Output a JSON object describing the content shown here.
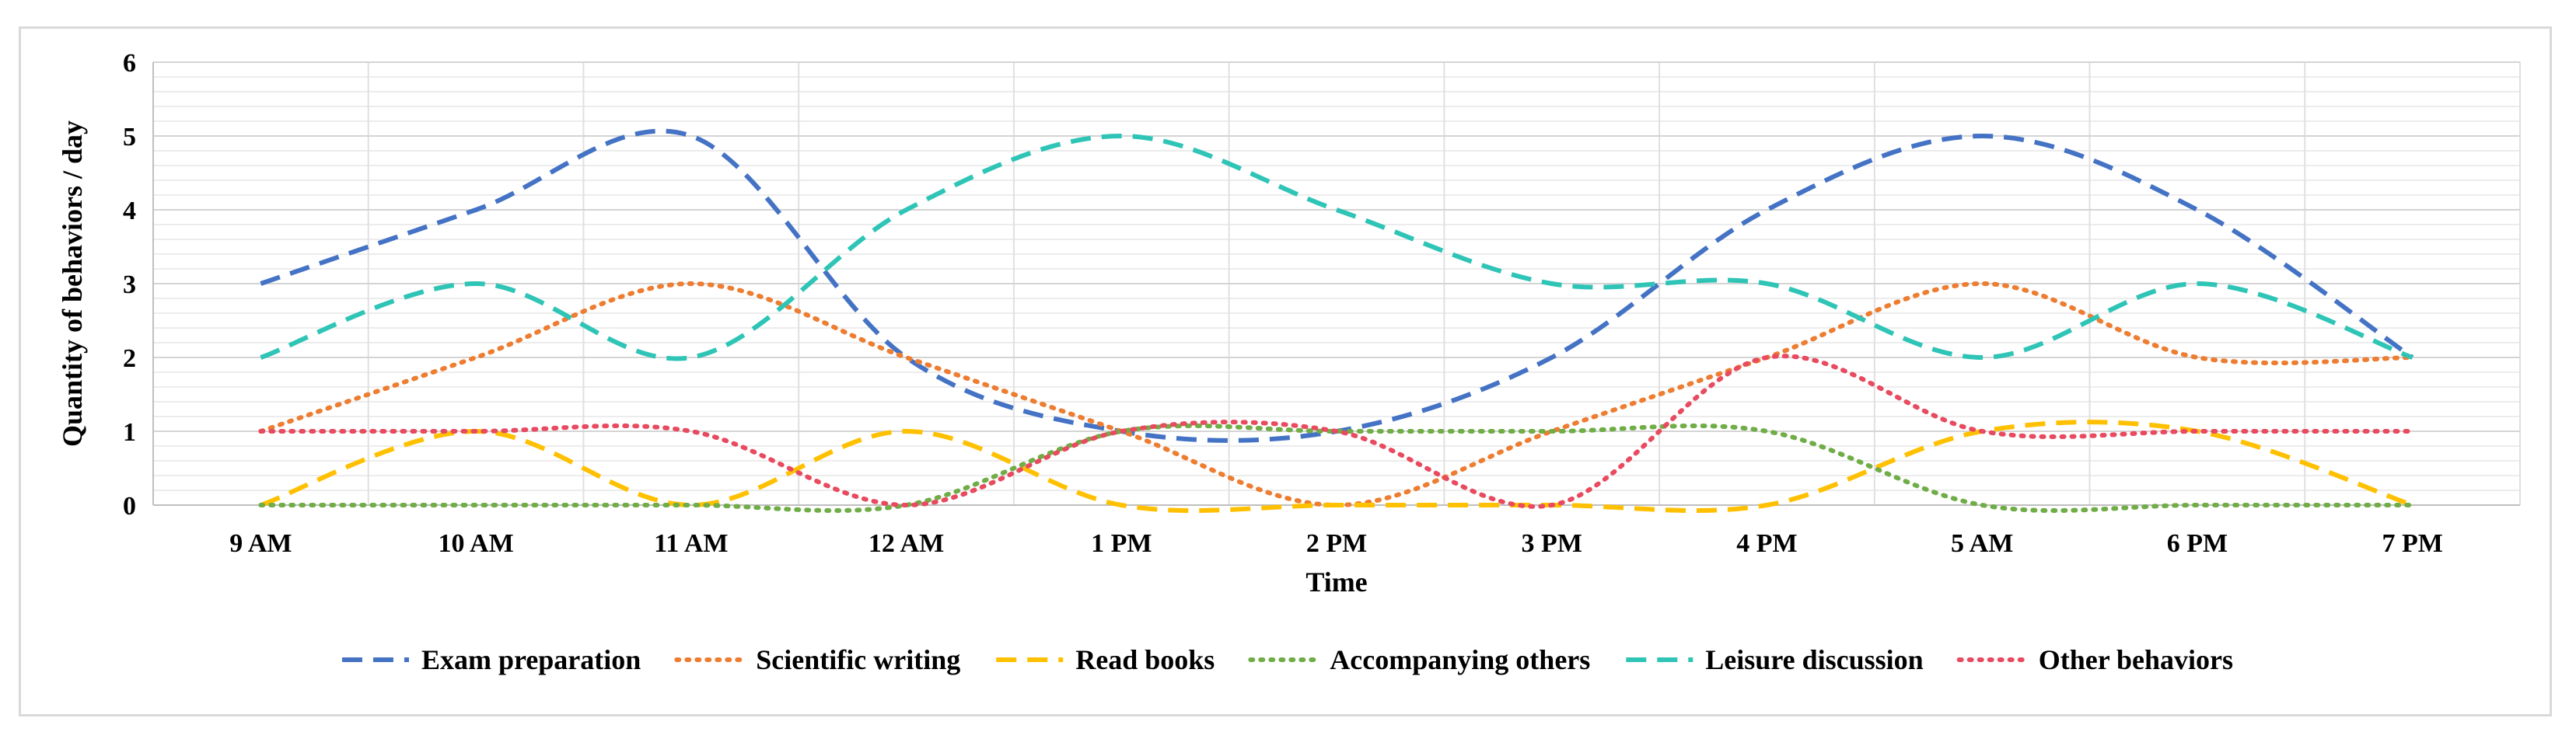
{
  "chart_data": {
    "type": "line",
    "title": "",
    "xlabel": "Time",
    "ylabel": "Quantity of behaviors / day",
    "categories": [
      "9 AM",
      "10 AM",
      "11 AM",
      "12 AM",
      "1 PM",
      "2 PM",
      "3 PM",
      "4 PM",
      "5 AM",
      "6 PM",
      "7 PM"
    ],
    "ylim": [
      0,
      6
    ],
    "yticks": [
      0,
      1,
      2,
      3,
      4,
      5,
      6
    ],
    "grid": true,
    "legend": "bottom",
    "series": [
      {
        "name": "Exam preparation",
        "color": "#4472C4",
        "dash": "dashed",
        "values": [
          3,
          4,
          5,
          2,
          1,
          1,
          2,
          4,
          5,
          4,
          2
        ]
      },
      {
        "name": "Scientific writing",
        "color": "#ED7D31",
        "dash": "dotted",
        "values": [
          1,
          2,
          3,
          2,
          1,
          0,
          1,
          2,
          3,
          2,
          2
        ]
      },
      {
        "name": "Read books",
        "color": "#FFC000",
        "dash": "dashed",
        "values": [
          0,
          1,
          0,
          1,
          0,
          0,
          0,
          0,
          1,
          1,
          0
        ]
      },
      {
        "name": "Accompanying others",
        "color": "#70AD47",
        "dash": "dotted",
        "values": [
          0,
          0,
          0,
          0,
          1,
          1,
          1,
          1,
          0,
          0,
          0
        ]
      },
      {
        "name": "Leisure discussion",
        "color": "#2EC4B6",
        "dash": "dashed",
        "values": [
          2,
          3,
          2,
          4,
          5,
          4,
          3,
          3,
          2,
          3,
          2
        ]
      },
      {
        "name": "Other behaviors",
        "color": "#E84A5F",
        "dash": "dotted",
        "values": [
          1,
          1,
          1,
          0,
          1,
          1,
          0,
          2,
          1,
          1,
          1
        ]
      }
    ]
  }
}
